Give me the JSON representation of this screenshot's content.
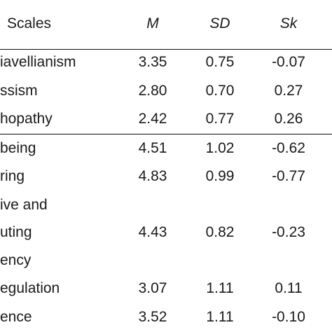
{
  "header": {
    "scales": "Scales",
    "m": "M",
    "sd": "SD",
    "sk": "Sk"
  },
  "rows": [
    {
      "label": "iavellianism",
      "m": "3.35",
      "sd": "0.75",
      "sk": "-0.07"
    },
    {
      "label": "ssism",
      "m": "2.80",
      "sd": "0.70",
      "sk": "0.27"
    },
    {
      "label": "hopathy",
      "m": "2.42",
      "sd": "0.77",
      "sk": "0.26"
    },
    {
      "label": "being",
      "m": "4.51",
      "sd": "1.02",
      "sk": "-0.62"
    },
    {
      "label": "ring",
      "m": "4.83",
      "sd": "0.99",
      "sk": "-0.77"
    },
    {
      "label": "ive and",
      "m": "",
      "sd": "",
      "sk": ""
    },
    {
      "label": "uting",
      "m": "4.43",
      "sd": "0.82",
      "sk": "-0.23"
    },
    {
      "label": "ency",
      "m": "",
      "sd": "",
      "sk": ""
    },
    {
      "label": "egulation",
      "m": "3.07",
      "sd": "1.11",
      "sk": "0.11"
    },
    {
      "label": "ence",
      "m": "3.52",
      "sd": "1.11",
      "sk": "-0.10"
    }
  ]
}
